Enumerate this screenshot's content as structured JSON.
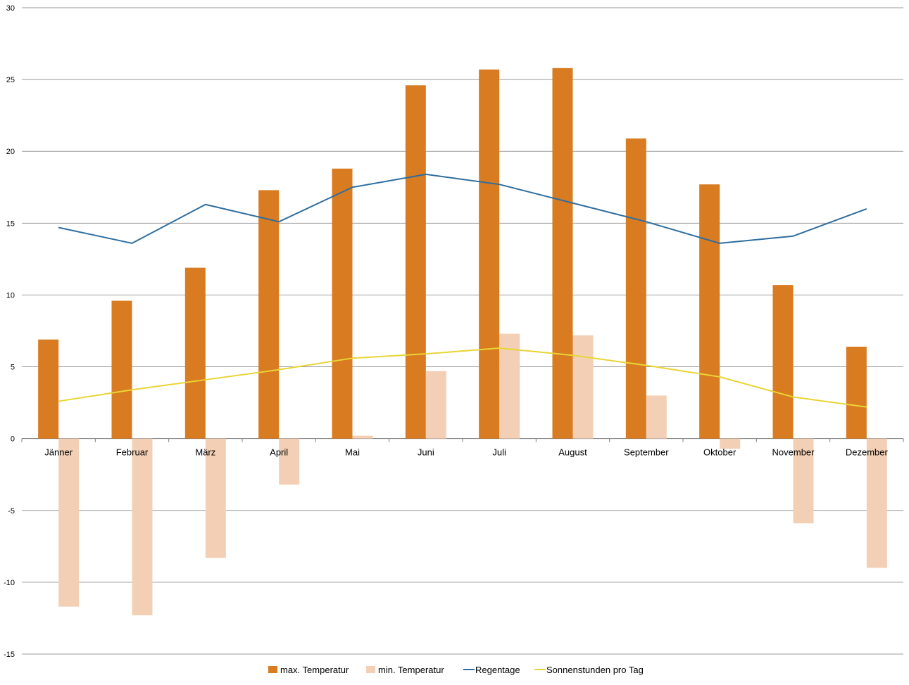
{
  "chart_data": {
    "type": "bar",
    "categories": [
      "Jänner",
      "Februar",
      "März",
      "April",
      "Mai",
      "Juni",
      "Juli",
      "August",
      "September",
      "Oktober",
      "November",
      "Dezember"
    ],
    "ylim": [
      -15,
      30
    ],
    "yticks": [
      30,
      25,
      20,
      15,
      10,
      5,
      0,
      -5,
      -10,
      -15
    ],
    "grid": true,
    "legend_position": "bottom",
    "series": [
      {
        "name": "max. Temperatur",
        "kind": "bar",
        "color": "#D97B21",
        "values": [
          6.9,
          9.6,
          11.9,
          17.3,
          18.8,
          24.6,
          25.7,
          25.8,
          20.9,
          17.7,
          10.7,
          6.4
        ]
      },
      {
        "name": "min. Temperatur",
        "kind": "bar",
        "color": "#F3D0B5",
        "values": [
          -11.7,
          -12.3,
          -8.3,
          -3.2,
          0.2,
          4.7,
          7.3,
          7.2,
          3.0,
          -0.7,
          -5.9,
          -9.0
        ]
      },
      {
        "name": "Regentage",
        "kind": "line",
        "color": "#2F6E9E",
        "values": [
          14.7,
          13.6,
          16.3,
          15.1,
          17.5,
          18.4,
          17.7,
          16.4,
          15.1,
          13.6,
          14.1,
          16.0
        ]
      },
      {
        "name": "Sonnenstunden pro Tag",
        "kind": "line",
        "color": "#E8D535",
        "values": [
          2.6,
          3.4,
          4.1,
          4.8,
          5.6,
          5.9,
          6.3,
          5.8,
          5.1,
          4.3,
          2.9,
          2.2
        ]
      }
    ]
  }
}
